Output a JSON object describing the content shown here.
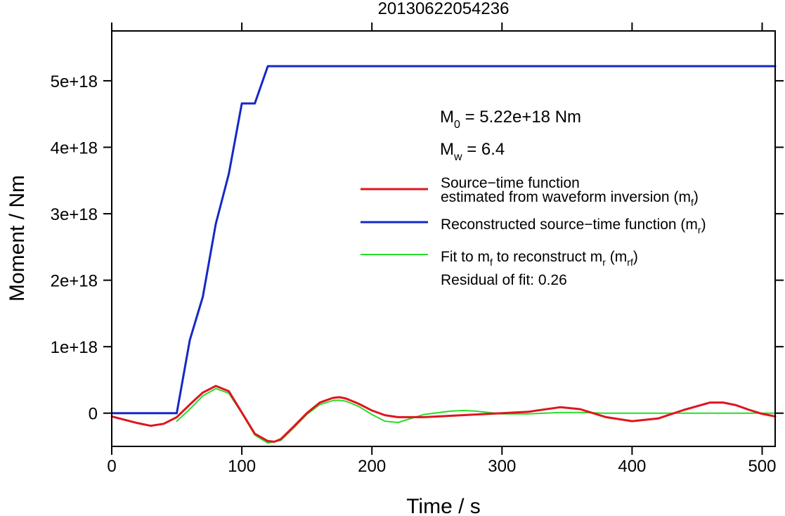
{
  "chart_data": {
    "type": "line",
    "title": "20130622054236",
    "xlabel": "Time / s",
    "ylabel": "Moment / Nm",
    "xlim": [
      0,
      510
    ],
    "ylim": [
      -5e+17,
      5.75e+18
    ],
    "x_ticks": [
      0,
      100,
      200,
      300,
      400,
      500
    ],
    "x_tick_labels": [
      "0",
      "100",
      "200",
      "300",
      "400",
      "500"
    ],
    "y_ticks": [
      0,
      1e+18,
      2e+18,
      3e+18,
      4e+18,
      5e+18
    ],
    "y_tick_labels": [
      "0",
      "1e+18",
      "2e+18",
      "3e+18",
      "4e+18",
      "5e+18"
    ],
    "grid": false,
    "annotations": {
      "m0_prefix": "M",
      "m0_sub": "0",
      "m0_suffix": " = 5.22e+18 Nm",
      "mw_prefix": "M",
      "mw_sub": "w",
      "mw_suffix": " = 6.4",
      "residual": "Residual of fit: 0.26"
    },
    "legend": {
      "placement": "right",
      "items": [
        {
          "color": "#e0141e",
          "line1": "Source−time function",
          "line2_prefix": "estimated from waveform inversion (m",
          "line2_sub": "f",
          "line2_suffix": ")"
        },
        {
          "color": "#1428c8",
          "line1_prefix": "Reconstructed source−time function (m",
          "line1_sub": "r",
          "line1_suffix": ")"
        },
        {
          "color": "#28dc28",
          "p1": "Fit to m",
          "s1": "f",
          "p2": " to reconstruct m",
          "s2": "r",
          "p3": " (m",
          "s3": "rf",
          "p4": ")"
        }
      ]
    },
    "series": [
      {
        "color": "#1428c8",
        "x": [
          0,
          50,
          60,
          70,
          80,
          90,
          100,
          110,
          120,
          510
        ],
        "y": [
          0,
          0,
          1.1e+18,
          1.75e+18,
          2.85e+18,
          3.6e+18,
          4.66e+18,
          4.66e+18,
          5.22e+18,
          5.22e+18
        ]
      },
      {
        "color": "#e0141e",
        "x": [
          0,
          10,
          20,
          30,
          40,
          50,
          60,
          70,
          80,
          90,
          100,
          110,
          120,
          125,
          130,
          140,
          150,
          160,
          170,
          175,
          180,
          190,
          200,
          210,
          220,
          240,
          260,
          280,
          300,
          320,
          345,
          360,
          380,
          400,
          420,
          440,
          460,
          470,
          480,
          490,
          500,
          510
        ],
        "y": [
          -5e+16,
          -1e+17,
          -1.5e+17,
          -1.9e+17,
          -1.6e+17,
          -6e+16,
          1.3e+17,
          3.1e+17,
          4.1e+17,
          3.3e+17,
          1e+16,
          -3.1e+17,
          -4.2e+17,
          -4.3e+17,
          -3.9e+17,
          -2e+17,
          0,
          1.6e+17,
          2.3e+17,
          2.4e+17,
          2.2e+17,
          1.4e+17,
          4e+16,
          -3e+16,
          -6e+16,
          -6e+16,
          -4e+16,
          -2e+16,
          0,
          2e+16,
          9e+16,
          6e+16,
          -6e+16,
          -1.2e+17,
          -8e+16,
          5e+16,
          1.6e+17,
          1.6e+17,
          1.2e+17,
          5e+16,
          -1e+16,
          -5e+16
        ]
      },
      {
        "color": "#28dc28",
        "x": [
          50,
          60,
          70,
          80,
          90,
          100,
          110,
          120,
          130,
          140,
          150,
          160,
          170,
          175,
          180,
          190,
          200,
          210,
          220,
          240,
          260,
          270,
          280,
          300,
          320,
          345,
          360,
          380,
          400,
          440,
          470,
          500,
          510
        ],
        "y": [
          -1.2e+17,
          6e+16,
          2.6e+17,
          3.7e+17,
          3e+17,
          0,
          -3.3e+17,
          -4.5e+17,
          -4.1e+17,
          -2.2e+17,
          -2e+16,
          1.3e+17,
          1.9e+17,
          1.95e+17,
          1.8e+17,
          1e+17,
          -2e+16,
          -1.2e+17,
          -1.4e+17,
          -2e+16,
          3e+16,
          4e+16,
          3e+16,
          -1e+16,
          -1e+16,
          1e+16,
          1e+16,
          0,
          0,
          0,
          0,
          0,
          0
        ]
      }
    ]
  }
}
